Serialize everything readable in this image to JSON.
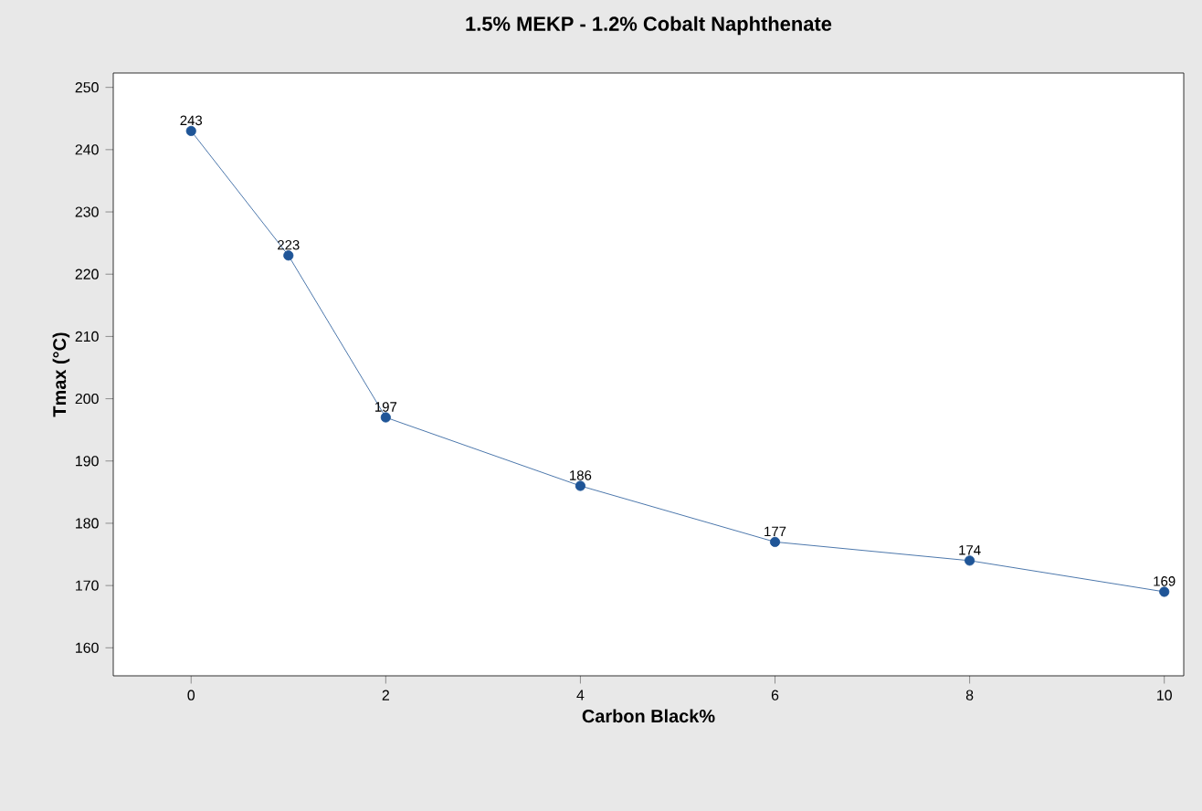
{
  "chart_data": {
    "type": "line",
    "title": "1.5% MEKP - 1.2% Cobalt Naphthenate",
    "xlabel": "Carbon Black%",
    "ylabel": "Tmax (°C)",
    "x": [
      0,
      1,
      2,
      4,
      6,
      8,
      10
    ],
    "series": [
      {
        "color": "#1f5597",
        "values": [
          243,
          223,
          197,
          186,
          177,
          174,
          169
        ]
      }
    ],
    "xlim": [
      -0.8,
      10.2
    ],
    "ylim": [
      155.5,
      252.3
    ],
    "xticks": [
      0,
      2,
      4,
      6,
      8,
      10
    ],
    "yticks": [
      160,
      170,
      180,
      190,
      200,
      210,
      220,
      230,
      240,
      250
    ],
    "data_labels": true,
    "marker": "circle",
    "line_style": "solid",
    "grid": false
  }
}
